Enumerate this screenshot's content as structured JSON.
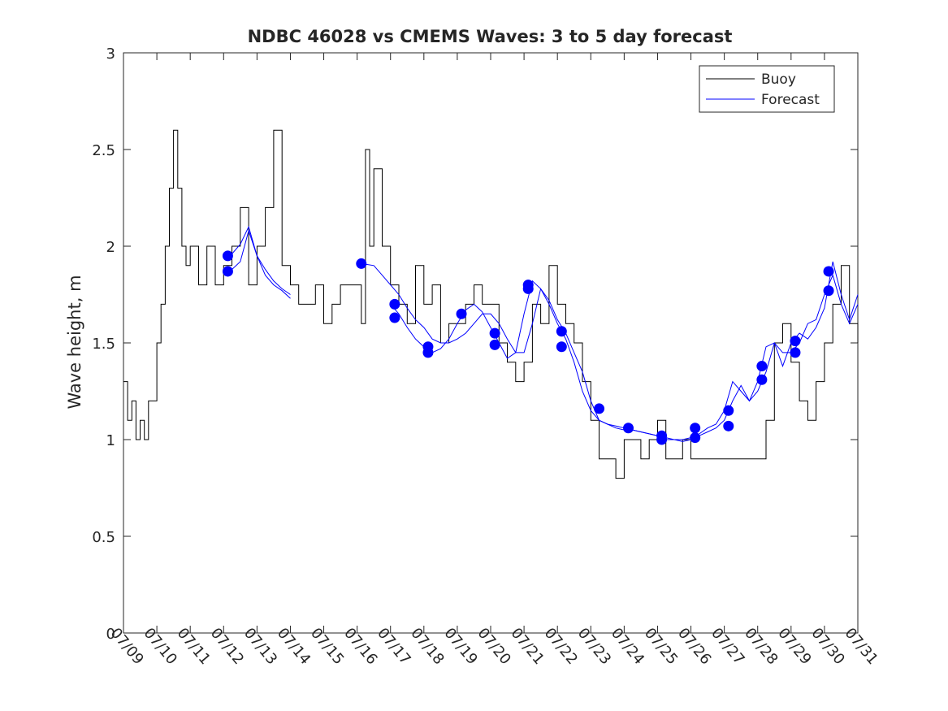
{
  "chart_data": {
    "type": "line",
    "title": "NDBC 46028 vs CMEMS Waves: 3 to 5 day forecast",
    "xlabel": "",
    "ylabel": "Wave height, m",
    "ylim": [
      0,
      3
    ],
    "yticks": [
      0,
      0.5,
      1,
      1.5,
      2,
      2.5,
      3
    ],
    "ytick_labels": [
      "0",
      "0.5",
      "1",
      "1.5",
      "2",
      "2.5",
      "3"
    ],
    "x_start": "07/09",
    "x_end": "07/31",
    "xtick_labels": [
      "07/09",
      "07/10",
      "07/11",
      "07/12",
      "07/13",
      "07/14",
      "07/15",
      "07/16",
      "07/17",
      "07/18",
      "07/19",
      "07/20",
      "07/21",
      "07/22",
      "07/23",
      "07/24",
      "07/25",
      "07/26",
      "07/27",
      "07/28",
      "07/29",
      "07/30",
      "07/31"
    ],
    "legend_position": "top-right",
    "grid": false,
    "colors": {
      "buoy": "#000000",
      "forecast": "#0000ff",
      "axes": "#262626"
    },
    "series": [
      {
        "name": "Buoy",
        "style": "line",
        "color": "#000000",
        "x": [
          "07/09 00:00",
          "07/09 03:00",
          "07/09 06:00",
          "07/09 09:00",
          "07/09 12:00",
          "07/09 15:00",
          "07/09 18:00",
          "07/09 21:00",
          "07/10 00:00",
          "07/10 03:00",
          "07/10 06:00",
          "07/10 09:00",
          "07/10 12:00",
          "07/10 15:00",
          "07/10 18:00",
          "07/10 21:00",
          "07/11 00:00",
          "07/11 06:00",
          "07/11 12:00",
          "07/11 18:00",
          "07/12 00:00",
          "07/12 06:00",
          "07/12 12:00",
          "07/12 18:00",
          "07/13 00:00",
          "07/13 06:00",
          "07/13 12:00",
          "07/13 18:00",
          "07/14 00:00",
          "07/14 06:00",
          "07/14 12:00",
          "07/14 18:00",
          "07/15 00:00",
          "07/15 06:00",
          "07/15 12:00",
          "07/15 18:00",
          "07/16 00:00",
          "07/16 03:00",
          "07/16 06:00",
          "07/16 09:00",
          "07/16 12:00",
          "07/16 18:00",
          "07/17 00:00",
          "07/17 06:00",
          "07/17 12:00",
          "07/17 18:00",
          "07/18 00:00",
          "07/18 06:00",
          "07/18 12:00",
          "07/18 18:00",
          "07/19 00:00",
          "07/19 06:00",
          "07/19 12:00",
          "07/19 18:00",
          "07/20 00:00",
          "07/20 06:00",
          "07/20 12:00",
          "07/20 18:00",
          "07/21 00:00",
          "07/21 06:00",
          "07/21 12:00",
          "07/21 18:00",
          "07/22 00:00",
          "07/22 06:00",
          "07/22 12:00",
          "07/22 18:00",
          "07/23 00:00",
          "07/23 06:00",
          "07/23 12:00",
          "07/23 18:00",
          "07/24 00:00",
          "07/24 06:00",
          "07/24 12:00",
          "07/24 18:00",
          "07/25 00:00",
          "07/25 06:00",
          "07/25 12:00",
          "07/25 18:00",
          "07/26 00:00",
          "07/26 06:00",
          "07/26 12:00",
          "07/26 18:00",
          "07/27 00:00",
          "07/27 06:00",
          "07/27 12:00",
          "07/27 18:00",
          "07/28 00:00",
          "07/28 06:00",
          "07/28 12:00",
          "07/28 18:00",
          "07/29 00:00",
          "07/29 06:00",
          "07/29 12:00",
          "07/29 18:00",
          "07/30 00:00",
          "07/30 06:00",
          "07/30 12:00",
          "07/30 18:00",
          "07/31 00:00"
        ],
        "y": [
          1.3,
          1.1,
          1.2,
          1.0,
          1.1,
          1.0,
          1.2,
          1.2,
          1.5,
          1.7,
          2.0,
          2.3,
          2.6,
          2.3,
          2.0,
          1.9,
          2.0,
          1.8,
          2.0,
          1.8,
          1.9,
          2.0,
          2.2,
          1.8,
          2.0,
          2.2,
          2.6,
          1.9,
          1.8,
          1.7,
          1.7,
          1.8,
          1.6,
          1.7,
          1.8,
          1.8,
          1.8,
          1.6,
          2.5,
          2.0,
          2.4,
          2.0,
          1.8,
          1.7,
          1.6,
          1.9,
          1.7,
          1.8,
          1.5,
          1.6,
          1.6,
          1.7,
          1.8,
          1.7,
          1.7,
          1.5,
          1.4,
          1.3,
          1.4,
          1.7,
          1.6,
          1.9,
          1.7,
          1.6,
          1.5,
          1.3,
          1.1,
          0.9,
          0.9,
          0.8,
          1.0,
          1.0,
          0.9,
          1.0,
          1.1,
          0.9,
          0.9,
          1.0,
          0.9,
          0.9,
          0.9,
          0.9,
          0.9,
          0.9,
          0.9,
          0.9,
          0.9,
          1.1,
          1.5,
          1.6,
          1.4,
          1.2,
          1.1,
          1.3,
          1.5,
          1.7,
          1.9,
          1.6,
          1.5
        ]
      },
      {
        "name": "Forecast",
        "style": "line",
        "color": "#0000ff",
        "x": [
          "07/12 03:00",
          "07/12 06:00",
          "07/12 12:00",
          "07/12 18:00",
          "07/13 00:00",
          "07/13 06:00",
          "07/13 12:00",
          "07/13 18:00",
          "07/14 00:00"
        ],
        "y": [
          1.87,
          1.88,
          1.92,
          2.08,
          1.95,
          1.88,
          1.82,
          1.78,
          1.75
        ]
      },
      {
        "name": "",
        "style": "line",
        "color": "#0000ff",
        "x": [
          "07/12 03:00",
          "07/12 06:00",
          "07/12 12:00",
          "07/12 18:00",
          "07/13 00:00",
          "07/13 06:00",
          "07/13 12:00",
          "07/13 18:00",
          "07/14 00:00"
        ],
        "y": [
          1.95,
          1.96,
          2.01,
          2.1,
          1.95,
          1.85,
          1.8,
          1.77,
          1.73
        ]
      },
      {
        "name": "",
        "style": "line",
        "color": "#0000ff",
        "x": [
          "07/16 03:00",
          "07/16 12:00",
          "07/16 18:00",
          "07/17 00:00",
          "07/17 06:00",
          "07/17 12:00",
          "07/17 18:00",
          "07/18 00:00",
          "07/18 06:00",
          "07/18 12:00",
          "07/18 18:00",
          "07/19 00:00",
          "07/19 06:00",
          "07/19 12:00",
          "07/19 18:00",
          "07/20 00:00",
          "07/20 06:00",
          "07/20 12:00",
          "07/20 18:00",
          "07/21 00:00",
          "07/21 06:00",
          "07/21 12:00",
          "07/21 18:00",
          "07/22 00:00",
          "07/22 06:00",
          "07/22 12:00",
          "07/22 18:00",
          "07/23 00:00",
          "07/23 06:00",
          "07/23 12:00",
          "07/23 18:00",
          "07/24 00:00",
          "07/24 06:00",
          "07/24 12:00",
          "07/24 18:00",
          "07/25 00:00",
          "07/25 06:00",
          "07/25 12:00",
          "07/25 18:00",
          "07/26 00:00",
          "07/26 06:00",
          "07/26 12:00",
          "07/26 18:00",
          "07/27 00:00",
          "07/27 06:00",
          "07/27 12:00",
          "07/27 18:00",
          "07/28 00:00",
          "07/28 06:00",
          "07/28 12:00",
          "07/28 18:00",
          "07/29 00:00",
          "07/29 06:00",
          "07/29 12:00",
          "07/29 18:00",
          "07/30 00:00",
          "07/30 06:00",
          "07/30 12:00",
          "07/30 18:00",
          "07/31 00:00"
        ],
        "y": [
          1.91,
          1.9,
          1.85,
          1.8,
          1.75,
          1.68,
          1.62,
          1.58,
          1.52,
          1.5,
          1.5,
          1.52,
          1.55,
          1.6,
          1.65,
          1.65,
          1.6,
          1.52,
          1.45,
          1.45,
          1.6,
          1.78,
          1.72,
          1.62,
          1.55,
          1.45,
          1.35,
          1.2,
          1.1,
          1.08,
          1.06,
          1.05,
          1.05,
          1.04,
          1.03,
          1.02,
          1.0,
          1.0,
          1.0,
          1.01,
          1.02,
          1.04,
          1.06,
          1.1,
          1.2,
          1.28,
          1.2,
          1.25,
          1.35,
          1.5,
          1.45,
          1.45,
          1.5,
          1.6,
          1.62,
          1.75,
          1.85,
          1.7,
          1.6,
          1.7
        ]
      },
      {
        "name": "",
        "style": "line",
        "color": "#0000ff",
        "x": [
          "07/17 00:00",
          "07/17 06:00",
          "07/17 12:00",
          "07/17 18:00",
          "07/18 00:00",
          "07/18 06:00",
          "07/18 12:00",
          "07/18 18:00",
          "07/19 00:00",
          "07/19 06:00",
          "07/19 12:00",
          "07/19 18:00",
          "07/20 00:00",
          "07/20 06:00",
          "07/20 12:00",
          "07/20 18:00",
          "07/21 00:00",
          "07/21 06:00",
          "07/21 12:00",
          "07/21 18:00",
          "07/22 00:00",
          "07/22 06:00",
          "07/22 12:00",
          "07/22 18:00",
          "07/23 00:00",
          "07/23 06:00",
          "07/23 12:00",
          "07/23 18:00",
          "07/24 00:00",
          "07/24 06:00",
          "07/24 12:00",
          "07/24 18:00",
          "07/25 00:00",
          "07/25 06:00",
          "07/25 12:00",
          "07/25 18:00",
          "07/26 00:00",
          "07/26 06:00",
          "07/26 12:00",
          "07/26 18:00",
          "07/27 00:00",
          "07/27 06:00",
          "07/27 12:00",
          "07/27 18:00",
          "07/28 00:00",
          "07/28 06:00",
          "07/28 12:00",
          "07/28 18:00",
          "07/29 00:00",
          "07/29 06:00",
          "07/29 12:00",
          "07/29 18:00",
          "07/30 00:00",
          "07/30 06:00",
          "07/30 12:00",
          "07/30 18:00",
          "07/31 00:00"
        ],
        "y": [
          1.7,
          1.65,
          1.58,
          1.52,
          1.48,
          1.45,
          1.47,
          1.52,
          1.6,
          1.67,
          1.7,
          1.66,
          1.58,
          1.5,
          1.42,
          1.45,
          1.65,
          1.82,
          1.78,
          1.7,
          1.6,
          1.52,
          1.4,
          1.25,
          1.15,
          1.1,
          1.08,
          1.07,
          1.06,
          1.05,
          1.04,
          1.03,
          1.02,
          1.01,
          1.0,
          0.99,
          1.0,
          1.03,
          1.06,
          1.08,
          1.15,
          1.3,
          1.25,
          1.2,
          1.3,
          1.48,
          1.5,
          1.38,
          1.5,
          1.55,
          1.52,
          1.58,
          1.68,
          1.92,
          1.75,
          1.62,
          1.75
        ]
      },
      {
        "name": "",
        "style": "markers",
        "color": "#0000ff",
        "x": [
          "07/12 03:00",
          "07/12 03:00",
          "07/16 03:00",
          "07/17 03:00",
          "07/17 03:00",
          "07/18 03:00",
          "07/18 03:00",
          "07/19 03:00",
          "07/20 03:00",
          "07/20 03:00",
          "07/21 03:00",
          "07/21 03:00",
          "07/22 03:00",
          "07/22 03:00",
          "07/23 06:00",
          "07/24 03:00",
          "07/25 03:00",
          "07/25 03:00",
          "07/26 03:00",
          "07/26 03:00",
          "07/27 03:00",
          "07/27 03:00",
          "07/28 03:00",
          "07/28 03:00",
          "07/29 03:00",
          "07/29 03:00",
          "07/30 03:00",
          "07/30 03:00"
        ],
        "y": [
          1.95,
          1.87,
          1.91,
          1.7,
          1.63,
          1.48,
          1.45,
          1.65,
          1.55,
          1.49,
          1.8,
          1.78,
          1.56,
          1.48,
          1.16,
          1.06,
          1.02,
          1.0,
          1.06,
          1.01,
          1.15,
          1.07,
          1.38,
          1.31,
          1.51,
          1.45,
          1.87,
          1.77
        ]
      }
    ]
  }
}
